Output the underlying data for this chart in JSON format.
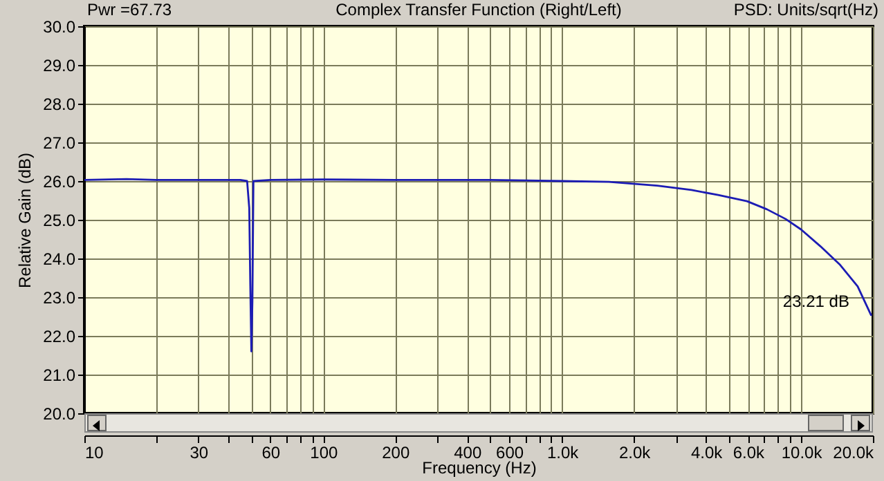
{
  "chart_data": {
    "type": "line",
    "title": "Complex Transfer Function (Right/Left)",
    "xlabel": "Frequency (Hz)",
    "ylabel": "Relative Gain (dB)",
    "annotations": [
      "Pwr =67.73",
      "PSD: Units/sqrt(Hz)",
      {
        "text": "23.21 dB",
        "x": 17260,
        "y": 23.21
      }
    ],
    "x": [
      10,
      15,
      20,
      30,
      45,
      48,
      49,
      49.5,
      50,
      50.5,
      51,
      60,
      100,
      200,
      500,
      1000,
      1570,
      2500,
      3480,
      4500,
      5940,
      7200,
      8620,
      10000,
      12030,
      14500,
      17260,
      19700
    ],
    "series": [
      {
        "color": "#1c1cb4",
        "values": [
          26.03,
          26.05,
          26.03,
          26.03,
          26.03,
          26.0,
          25.3,
          23.3,
          21.6,
          22.9,
          26.0,
          26.03,
          26.04,
          26.03,
          26.03,
          26.0,
          25.98,
          25.88,
          25.77,
          25.64,
          25.48,
          25.27,
          25.02,
          24.75,
          24.32,
          23.85,
          23.28,
          22.52
        ]
      }
    ],
    "log": "x",
    "grid": true,
    "xlim": [
      10,
      20000
    ],
    "ylim": [
      20,
      30
    ],
    "xticks": [
      {
        "value": 10,
        "label": "10"
      },
      {
        "value": 20,
        "label": null
      },
      {
        "value": 30,
        "label": "30"
      },
      {
        "value": 40,
        "label": null
      },
      {
        "value": 50,
        "label": null
      },
      {
        "value": 60,
        "label": "60"
      },
      {
        "value": 70,
        "label": null
      },
      {
        "value": 80,
        "label": null
      },
      {
        "value": 90,
        "label": null
      },
      {
        "value": 100,
        "label": "100"
      },
      {
        "value": 200,
        "label": "200"
      },
      {
        "value": 300,
        "label": null
      },
      {
        "value": 400,
        "label": "400"
      },
      {
        "value": 500,
        "label": null
      },
      {
        "value": 600,
        "label": "600"
      },
      {
        "value": 700,
        "label": null
      },
      {
        "value": 800,
        "label": null
      },
      {
        "value": 900,
        "label": null
      },
      {
        "value": 1000,
        "label": "1.0k"
      },
      {
        "value": 2000,
        "label": "2.0k"
      },
      {
        "value": 3000,
        "label": null
      },
      {
        "value": 4000,
        "label": "4.0k"
      },
      {
        "value": 5000,
        "label": null
      },
      {
        "value": 6000,
        "label": "6.0k"
      },
      {
        "value": 7000,
        "label": null
      },
      {
        "value": 8000,
        "label": null
      },
      {
        "value": 9000,
        "label": null
      },
      {
        "value": 10000,
        "label": "10.0k"
      },
      {
        "value": 20000,
        "label": "20.0k"
      }
    ],
    "yticks": [
      {
        "value": 20,
        "label": "20.0"
      },
      {
        "value": 21,
        "label": "21.0"
      },
      {
        "value": 22,
        "label": "22.0"
      },
      {
        "value": 23,
        "label": "23.0"
      },
      {
        "value": 24,
        "label": "24.0"
      },
      {
        "value": 25,
        "label": "25.0"
      },
      {
        "value": 26,
        "label": "26.0"
      },
      {
        "value": 27,
        "label": "27.0"
      },
      {
        "value": 28,
        "label": "28.0"
      },
      {
        "value": 29,
        "label": "29.0"
      },
      {
        "value": 30,
        "label": "30.0"
      }
    ]
  }
}
